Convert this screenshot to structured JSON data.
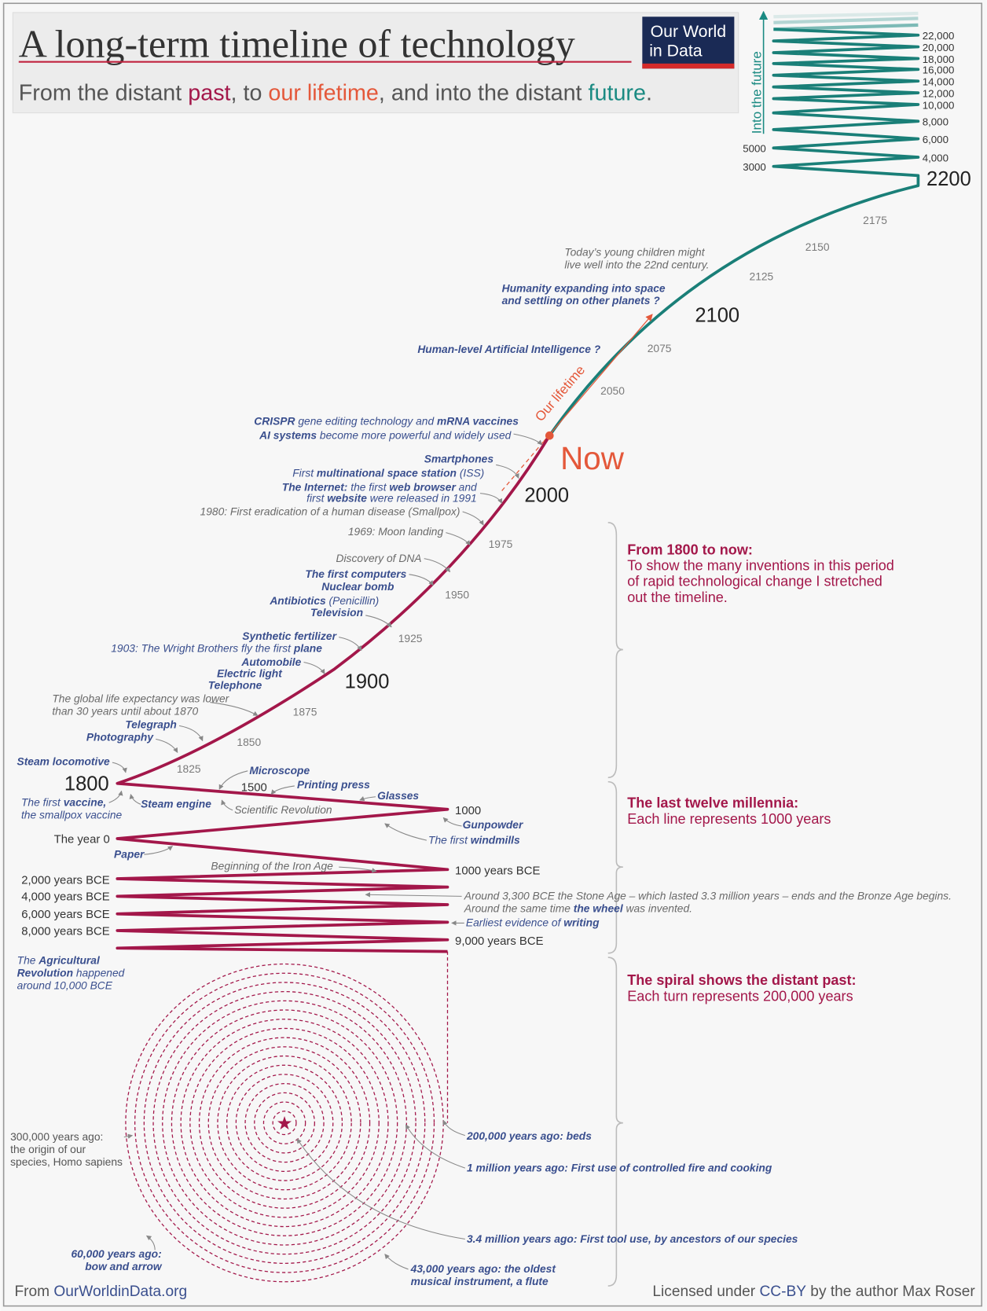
{
  "header": {
    "title": "A long-term timeline of technology",
    "subtitle": [
      "From the distant ",
      "past",
      ", to ",
      "our lifetime",
      ", and into the distant ",
      "future",
      "."
    ],
    "logo": [
      "Our World",
      "in Data"
    ]
  },
  "colors": {
    "past": "#a3174a",
    "lifetime": "#e4583a",
    "future": "#1a8a82",
    "logo_bg": "#1a2a55",
    "logo_bar": "#d42a2a",
    "annotation": "#3a4f8e"
  },
  "future": {
    "axis_label": "Into the future",
    "right_labels": [
      "22,000",
      "20,000",
      "18,000",
      "16,000",
      "14,000",
      "12,000",
      "10,000",
      "8,000",
      "6,000",
      "4,000"
    ],
    "left_labels": [
      "5000",
      "3000"
    ],
    "y2200": "2200"
  },
  "years": {
    "y2175": "2175",
    "y2150": "2150",
    "y2125": "2125",
    "y2100": "2100",
    "y2075": "2075",
    "y2050": "2050",
    "now": "Now",
    "y2000": "2000",
    "y1975": "1975",
    "y1950": "1950",
    "y1925": "1925",
    "y1900": "1900",
    "y1875": "1875",
    "y1850": "1850",
    "y1825": "1825",
    "y1800": "1800",
    "y1500": "1500",
    "y1000": "1000",
    "year0": "The year 0",
    "bce1000": "1000 years BCE",
    "bce2000": "2,000 years BCE",
    "bce4000": "4,000 years BCE",
    "bce6000": "6,000 years BCE",
    "bce8000": "8,000 years BCE",
    "bce9000": "9,000 years BCE"
  },
  "our_lifetime": "Our lifetime",
  "annotations": {
    "children": [
      "Today’s young children might",
      "live well into the 22nd century."
    ],
    "space": [
      "Humanity expanding into space",
      "and settling on other planets ?"
    ],
    "ai_human": "Human-level Artificial Intelligence ?",
    "crispr": [
      "CRISPR",
      " gene editing technology and ",
      "mRNA vaccines"
    ],
    "ai": [
      "AI systems",
      " become more powerful and widely used"
    ],
    "smartphones": "Smartphones",
    "iss": [
      "First ",
      "multinational space station",
      " (ISS)"
    ],
    "internet1": [
      "The Internet:",
      " the first ",
      "web browser",
      " and"
    ],
    "internet2": [
      "first ",
      "website",
      " were released in 1991"
    ],
    "smallpox": "1980: First eradication of a human disease (Smallpox)",
    "moon": "1969: Moon landing",
    "dna": "Discovery of DNA",
    "computers": "The first computers",
    "nuclear": "Nuclear bomb",
    "antibiotics": [
      "Antibiotics",
      " (Penicillin)"
    ],
    "television": "Television",
    "fertilizer": "Synthetic fertilizer",
    "plane": [
      "1903: The Wright Brothers fly the first ",
      "plane"
    ],
    "automobile": "Automobile",
    "electric": "Electric light",
    "telephone": "Telephone",
    "life_exp": [
      "The global life expectancy was lower",
      "than 30 years until about 1870"
    ],
    "telegraph": "Telegraph",
    "photography": "Photography",
    "locomotive": "Steam locomotive",
    "microscope": "Microscope",
    "printing": "Printing press",
    "glasses": "Glasses",
    "vaccine": [
      "The first ",
      "vaccine,",
      "the smallpox vaccine"
    ],
    "steam_engine": "Steam engine",
    "sci_rev": "Scientific Revolution",
    "gunpowder": "Gunpowder",
    "windmills": [
      "The first ",
      "windmills"
    ],
    "paper": "Paper",
    "iron_age": "Beginning of the Iron Age",
    "bronze1": "Around 3,300 BCE the Stone Age – which lasted 3.3 million years – ends and the Bronze Age begins.",
    "bronze2": [
      "Around the same time ",
      "the wheel",
      " was invented."
    ],
    "writing": [
      "Earliest evidence of ",
      "writing"
    ],
    "agri": [
      "The ",
      "Agricultural",
      "Revolution",
      " happened",
      "around 10,000 BCE"
    ],
    "sapiens": [
      "300,000 years ago:",
      "the origin of our",
      "species, Homo sapiens"
    ],
    "beds": "200,000 years ago: beds",
    "fire": "1 million years ago: First use of controlled fire and cooking",
    "tools": "3.4 million years ago: First tool use, by ancestors of our species",
    "bow": [
      "60,000 years ago:",
      "bow and arrow"
    ],
    "flute": [
      "43,000 years ago: the oldest",
      "musical instrument, a flute"
    ]
  },
  "sections": [
    {
      "heading": "From 1800 to now:",
      "body": [
        "To show the many inventions in this period",
        "of rapid technological change I stretched",
        "out the timeline."
      ]
    },
    {
      "heading": "The last twelve millennia:",
      "body": [
        "Each line represents 1000 years"
      ]
    },
    {
      "heading": "The spiral shows the distant past:",
      "body": [
        "Each turn represents 200,000 years"
      ]
    }
  ],
  "footer": {
    "source": [
      "From ",
      "OurWorldinData.org"
    ],
    "license": [
      "Licensed under ",
      "CC-BY",
      " by the author Max Roser"
    ]
  }
}
